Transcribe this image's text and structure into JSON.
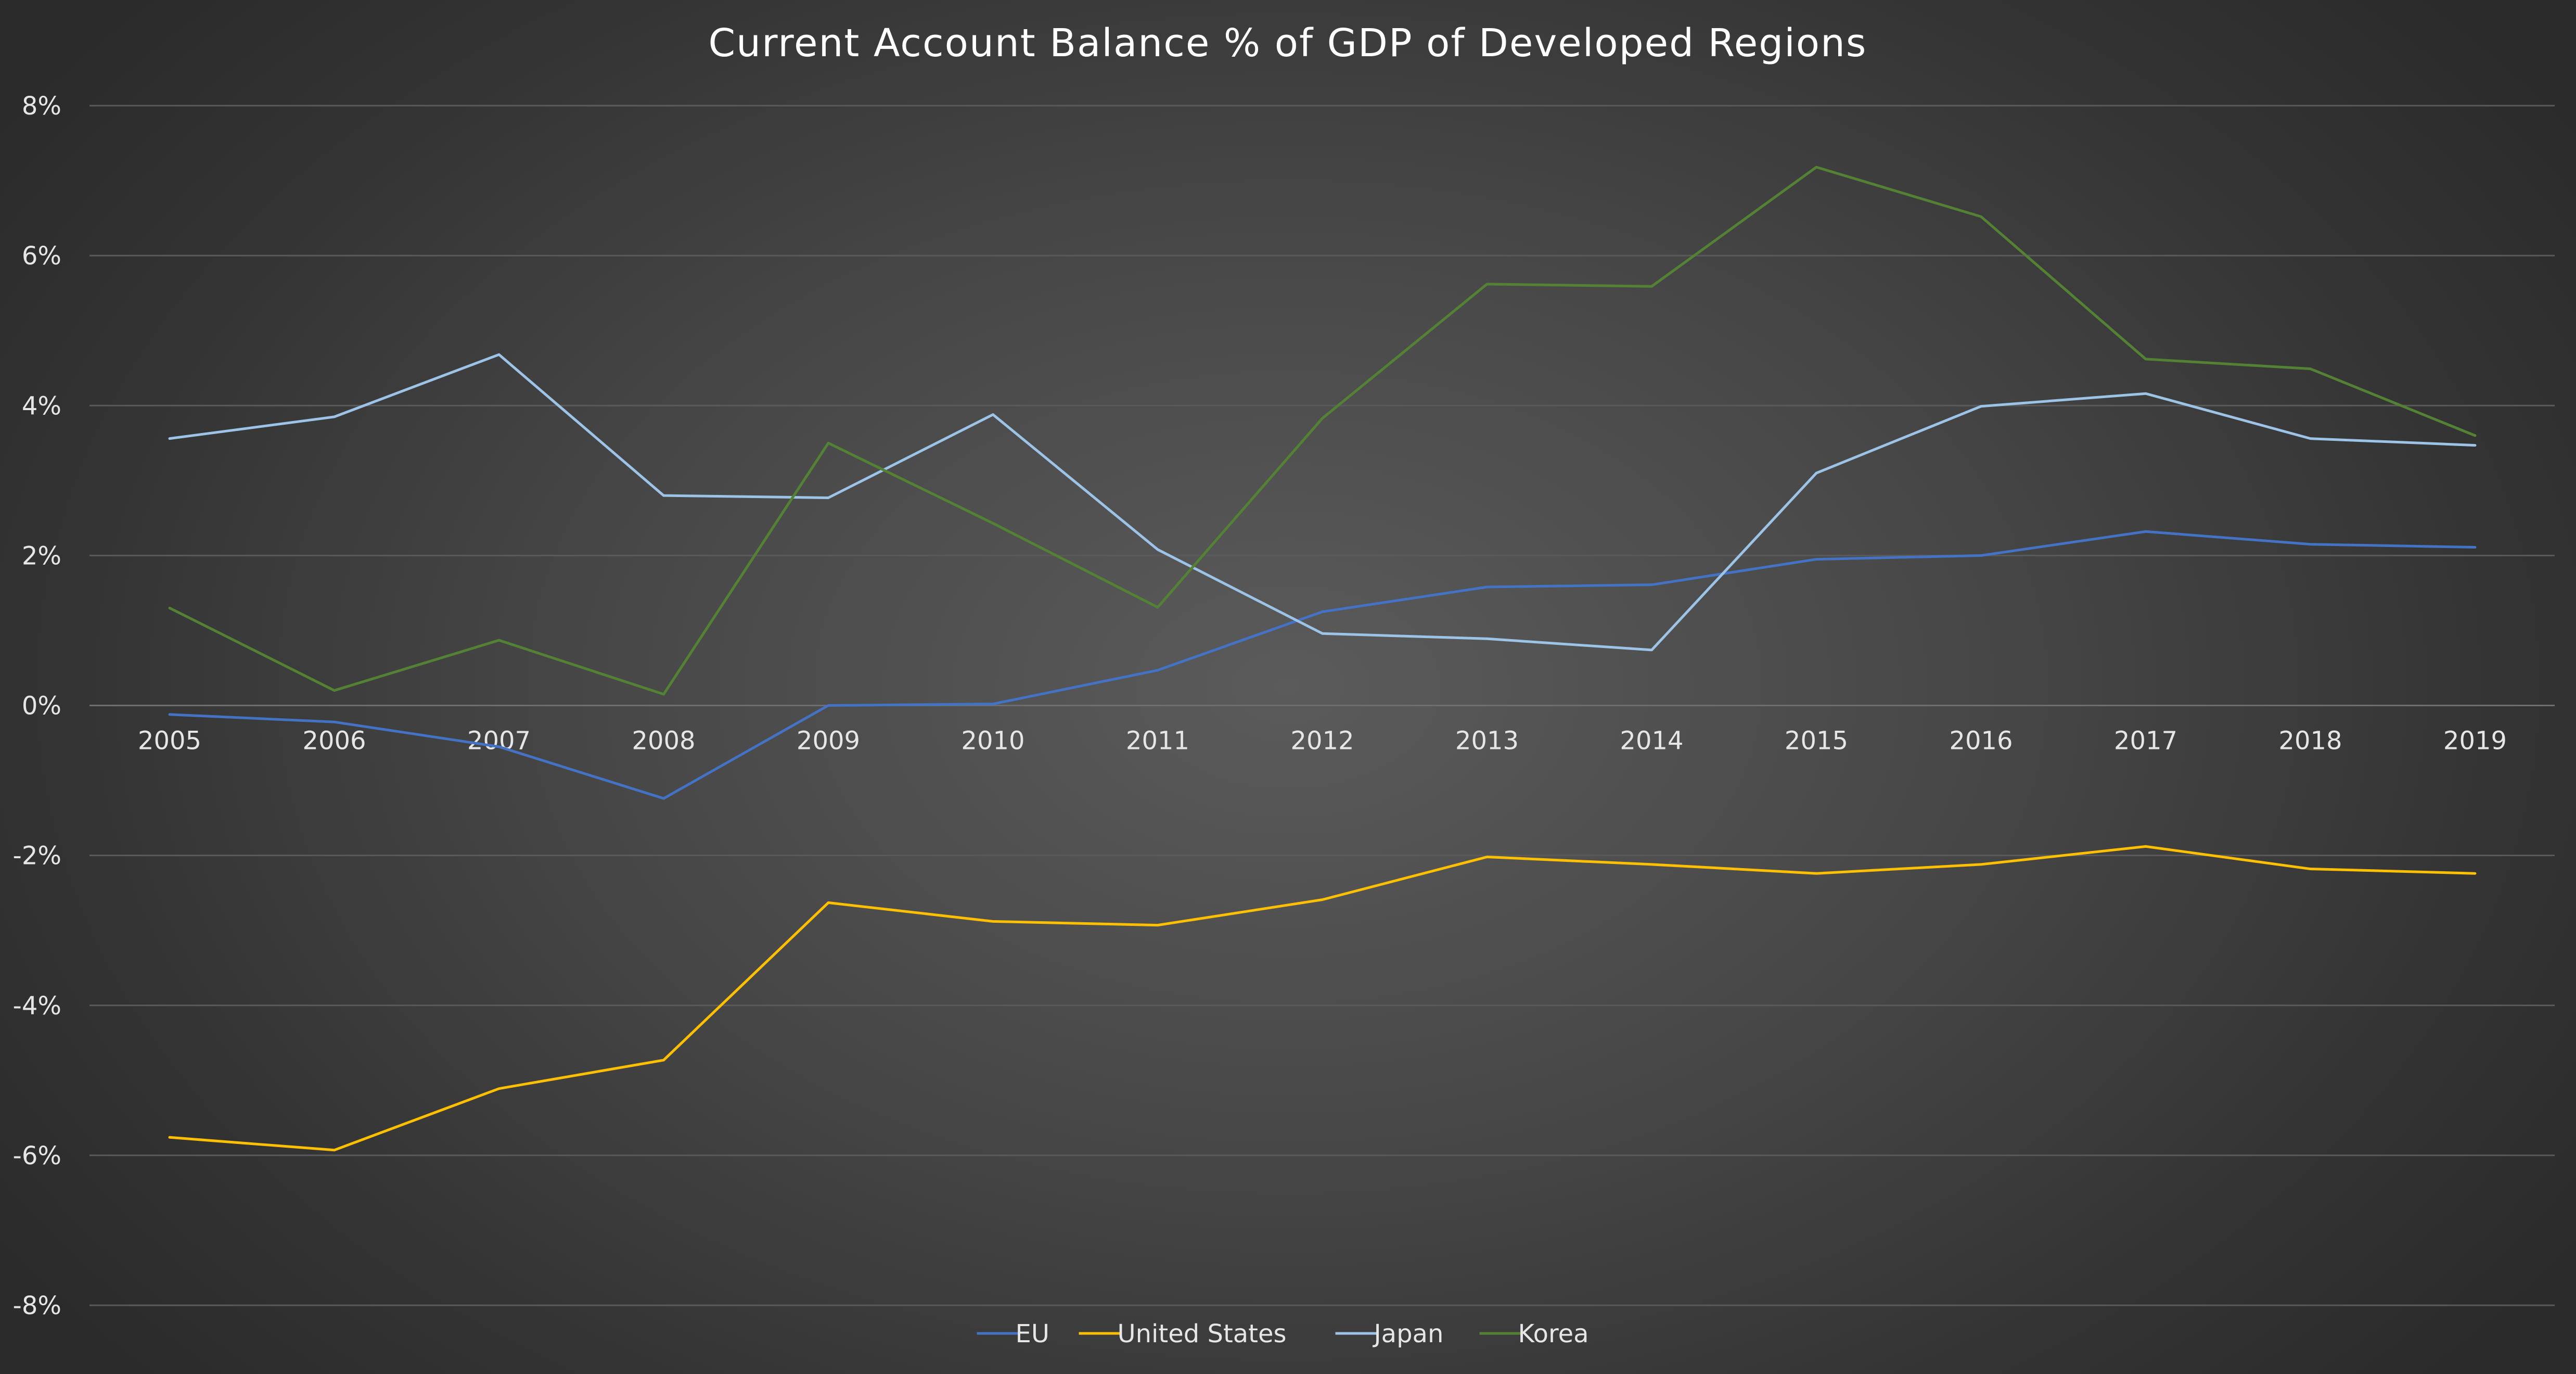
{
  "chart_data": {
    "type": "line",
    "title": "Current Account Balance % of GDP of Developed Regions",
    "xlabel": "",
    "ylabel": "",
    "x": [
      "2005",
      "2006",
      "2007",
      "2008",
      "2009",
      "2010",
      "2011",
      "2012",
      "2013",
      "2014",
      "2015",
      "2016",
      "2017",
      "2018",
      "2019"
    ],
    "ylim": [
      -8,
      8
    ],
    "yticks": [
      -8,
      -6,
      -4,
      -2,
      0,
      2,
      4,
      6,
      8
    ],
    "ytick_labels": [
      "-8%",
      "-6%",
      "-4%",
      "-2%",
      "0%",
      "2%",
      "4%",
      "6%",
      "8%"
    ],
    "grid": true,
    "legend_position": "bottom-center",
    "series": [
      {
        "name": "EU",
        "color": "#4472c4",
        "values": [
          -0.12,
          -0.22,
          -0.55,
          -1.24,
          0.0,
          0.02,
          0.47,
          1.25,
          1.58,
          1.61,
          1.95,
          2.0,
          2.32,
          2.15,
          2.11
        ]
      },
      {
        "name": "United States",
        "color": "#ffc000",
        "values": [
          -5.76,
          -5.93,
          -5.11,
          -4.73,
          -2.63,
          -2.88,
          -2.93,
          -2.59,
          -2.02,
          -2.12,
          -2.24,
          -2.12,
          -1.88,
          -2.18,
          -2.24
        ]
      },
      {
        "name": "Japan",
        "color": "#9dc3e6",
        "values": [
          3.56,
          3.85,
          4.68,
          2.8,
          2.77,
          3.88,
          2.08,
          0.96,
          0.89,
          0.74,
          3.1,
          3.99,
          4.16,
          3.56,
          3.47
        ]
      },
      {
        "name": "Korea",
        "color": "#548235",
        "values": [
          1.3,
          0.2,
          0.87,
          0.15,
          3.5,
          2.43,
          1.31,
          3.83,
          5.62,
          5.59,
          7.18,
          6.52,
          4.62,
          4.49,
          3.6
        ]
      }
    ]
  }
}
